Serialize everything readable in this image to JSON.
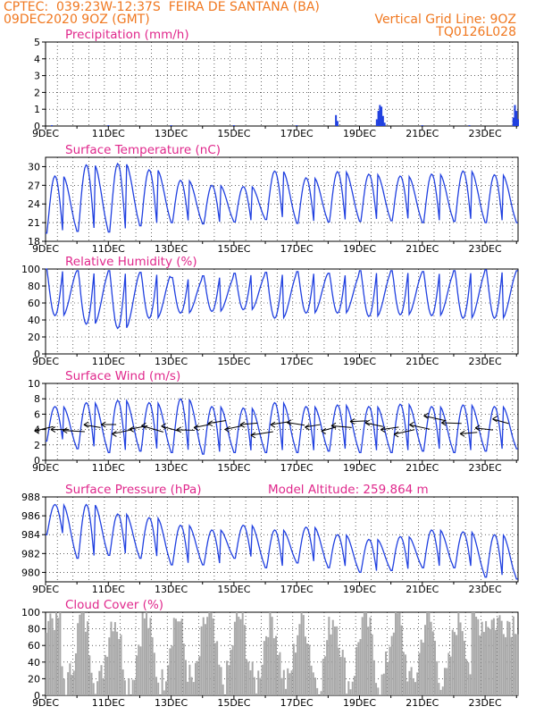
{
  "header": {
    "line1": "CPTEC:  039:23W-12:37S  FEIRA DE SANTANA (BA)",
    "line2": "09DEC2020 9OZ (GMT)",
    "right1": "Vertical Grid Line: 9OZ",
    "right2": "TQ0126L028"
  },
  "x_ticks": [
    "9DEC",
    "11DEC",
    "13DEC",
    "15DEC",
    "17DEC",
    "19DEC",
    "21DEC",
    "23DEC"
  ],
  "colors": {
    "line": "#2040e0",
    "title": "#e0288c",
    "header": "#f07820",
    "bars": "#a8a8a8",
    "grid": "#000000"
  },
  "chart_data": [
    {
      "type": "bar",
      "title": "Precipitation (mm/h)",
      "ylim": [
        0,
        5
      ],
      "yticks": [
        0,
        1,
        2,
        3,
        4,
        5
      ],
      "x_unit": "days since 9DEC 00Z",
      "values": [
        [
          9.2,
          0.05
        ],
        [
          11.0,
          0.05
        ],
        [
          13.0,
          0.05
        ],
        [
          15.0,
          0.05
        ],
        [
          17.0,
          0.05
        ],
        [
          18.25,
          0.65
        ],
        [
          18.3,
          0.3
        ],
        [
          19.55,
          0.4
        ],
        [
          19.6,
          0.9
        ],
        [
          19.65,
          1.25
        ],
        [
          19.7,
          1.15
        ],
        [
          19.75,
          0.6
        ],
        [
          19.8,
          0.2
        ],
        [
          21.0,
          0.05
        ],
        [
          22.5,
          0.05
        ],
        [
          23.9,
          0.5
        ],
        [
          23.95,
          1.25
        ],
        [
          24.0,
          0.9
        ],
        [
          24.05,
          0.4
        ]
      ]
    },
    {
      "type": "line",
      "title": "Surface Temperature (nC)",
      "ylim": [
        18,
        31.5
      ],
      "yticks": [
        18,
        21,
        24,
        27,
        30
      ],
      "days": [
        {
          "max": 28.5,
          "min": 19.3
        },
        {
          "max": 30.3,
          "min": 19.6
        },
        {
          "max": 30.5,
          "min": 19.5
        },
        {
          "max": 29.5,
          "min": 20.5
        },
        {
          "max": 27.8,
          "min": 21.0
        },
        {
          "max": 27.0,
          "min": 20.8
        },
        {
          "max": 26.8,
          "min": 21.1
        },
        {
          "max": 29.3,
          "min": 21.5
        },
        {
          "max": 28.2,
          "min": 20.9
        },
        {
          "max": 29.2,
          "min": 21.1
        },
        {
          "max": 28.8,
          "min": 21.2
        },
        {
          "max": 28.5,
          "min": 21.3
        },
        {
          "max": 28.8,
          "min": 21.0
        },
        {
          "max": 29.3,
          "min": 21.2
        },
        {
          "max": 28.7,
          "min": 21.0
        },
        {
          "max": 28.0,
          "min": 21.0
        },
        {
          "max": 26.5,
          "min": 22.0
        }
      ]
    },
    {
      "type": "line",
      "title": "Relative Humidity (%)",
      "ylim": [
        0,
        100
      ],
      "yticks": [
        0,
        20,
        40,
        60,
        80,
        100
      ],
      "days": [
        {
          "max": 100,
          "min": 45
        },
        {
          "max": 98,
          "min": 35
        },
        {
          "max": 98,
          "min": 30
        },
        {
          "max": 96,
          "min": 42
        },
        {
          "max": 90,
          "min": 48
        },
        {
          "max": 92,
          "min": 50
        },
        {
          "max": 95,
          "min": 52
        },
        {
          "max": 96,
          "min": 42
        },
        {
          "max": 97,
          "min": 48
        },
        {
          "max": 95,
          "min": 48
        },
        {
          "max": 98,
          "min": 44
        },
        {
          "max": 98,
          "min": 46
        },
        {
          "max": 97,
          "min": 45
        },
        {
          "max": 98,
          "min": 42
        },
        {
          "max": 99,
          "min": 42
        },
        {
          "max": 98,
          "min": 45
        },
        {
          "max": 100,
          "min": 42
        }
      ]
    },
    {
      "type": "line",
      "title": "Surface Wind (m/s)",
      "ylim": [
        0,
        10
      ],
      "yticks": [
        0,
        2,
        4,
        6,
        8,
        10
      ],
      "days": [
        {
          "max": 7.0,
          "min": 2.5
        },
        {
          "max": 7.5,
          "min": 1.5
        },
        {
          "max": 7.8,
          "min": 1.0
        },
        {
          "max": 7.5,
          "min": 1.2
        },
        {
          "max": 8.0,
          "min": 1.0
        },
        {
          "max": 7.0,
          "min": 0.8
        },
        {
          "max": 6.8,
          "min": 1.0
        },
        {
          "max": 7.5,
          "min": 1.0
        },
        {
          "max": 7.0,
          "min": 1.0
        },
        {
          "max": 7.2,
          "min": 1.2
        },
        {
          "max": 7.0,
          "min": 1.0
        },
        {
          "max": 7.3,
          "min": 1.0
        },
        {
          "max": 7.0,
          "min": 1.2
        },
        {
          "max": 7.2,
          "min": 1.0
        },
        {
          "max": 7.0,
          "min": 1.2
        },
        {
          "max": 6.5,
          "min": 1.5
        },
        {
          "max": 6.0,
          "min": 2.0
        }
      ],
      "wind_arrows": "east-to-west"
    },
    {
      "type": "line",
      "title": "Surface Pressure (hPa)",
      "annotation": "Model Altitude: 259.864 m",
      "ylim": [
        979,
        988
      ],
      "yticks": [
        980,
        982,
        984,
        986,
        988
      ],
      "days": [
        {
          "max": 987.2,
          "min": 984.0
        },
        {
          "max": 987.2,
          "min": 981.5
        },
        {
          "max": 986.2,
          "min": 981.8
        },
        {
          "max": 985.8,
          "min": 981.5
        },
        {
          "max": 985.0,
          "min": 980.8
        },
        {
          "max": 984.5,
          "min": 980.8
        },
        {
          "max": 985.0,
          "min": 981.5
        },
        {
          "max": 984.5,
          "min": 980.5
        },
        {
          "max": 984.8,
          "min": 981.0
        },
        {
          "max": 984.0,
          "min": 980.5
        },
        {
          "max": 983.5,
          "min": 980.0
        },
        {
          "max": 983.8,
          "min": 980.2
        },
        {
          "max": 984.5,
          "min": 980.5
        },
        {
          "max": 984.3,
          "min": 980.5
        },
        {
          "max": 984.0,
          "min": 979.5
        },
        {
          "max": 983.5,
          "min": 979.3
        },
        {
          "max": 982.5,
          "min": 979.5
        }
      ]
    },
    {
      "type": "bar",
      "title": "Cloud Cover (%)",
      "ylim": [
        0,
        100
      ],
      "yticks": [
        0,
        20,
        40,
        60,
        80,
        100
      ]
    }
  ]
}
